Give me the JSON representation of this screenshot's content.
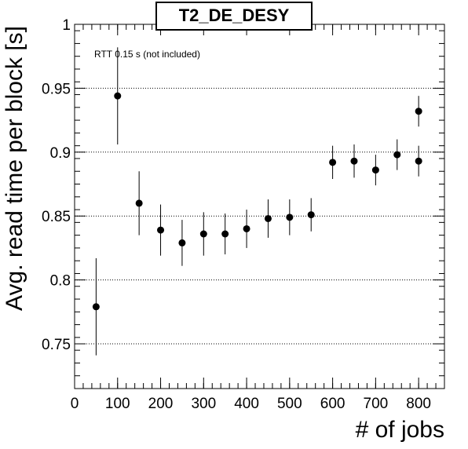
{
  "chart_data": {
    "type": "scatter",
    "title": "T2_DE_DESY",
    "xlabel": "# of jobs",
    "ylabel": "Avg. read time per block [s]",
    "annotation": "RTT 0.15 s (not included)",
    "xlim": [
      0,
      860
    ],
    "ylim": [
      0.715,
      1.0
    ],
    "x_ticks": [
      0,
      100,
      200,
      300,
      400,
      500,
      600,
      700,
      800
    ],
    "x_tick_labels": [
      "0",
      "100",
      "200",
      "300",
      "400",
      "500",
      "600",
      "700",
      "800"
    ],
    "y_ticks": [
      0.75,
      0.8,
      0.85,
      0.9,
      0.95,
      1.0
    ],
    "y_tick_labels": [
      "0.75",
      "0.8",
      "0.85",
      "0.9",
      "0.95",
      "1"
    ],
    "grid": "horizontal dotted at y ticks",
    "marker_color": "#000000",
    "points": [
      {
        "x": 50,
        "y": 0.779,
        "err": 0.038
      },
      {
        "x": 100,
        "y": 0.944,
        "err": 0.038
      },
      {
        "x": 150,
        "y": 0.86,
        "err": 0.025
      },
      {
        "x": 200,
        "y": 0.839,
        "err": 0.02
      },
      {
        "x": 250,
        "y": 0.829,
        "err": 0.018
      },
      {
        "x": 300,
        "y": 0.836,
        "err": 0.017
      },
      {
        "x": 350,
        "y": 0.836,
        "err": 0.016
      },
      {
        "x": 400,
        "y": 0.84,
        "err": 0.015
      },
      {
        "x": 450,
        "y": 0.848,
        "err": 0.015
      },
      {
        "x": 500,
        "y": 0.849,
        "err": 0.014
      },
      {
        "x": 550,
        "y": 0.851,
        "err": 0.013
      },
      {
        "x": 600,
        "y": 0.892,
        "err": 0.013
      },
      {
        "x": 650,
        "y": 0.893,
        "err": 0.013
      },
      {
        "x": 700,
        "y": 0.886,
        "err": 0.012
      },
      {
        "x": 750,
        "y": 0.898,
        "err": 0.012
      },
      {
        "x": 800,
        "y": 0.932,
        "err": 0.012
      },
      {
        "x": 800,
        "y": 0.893,
        "err": 0.012
      }
    ]
  }
}
